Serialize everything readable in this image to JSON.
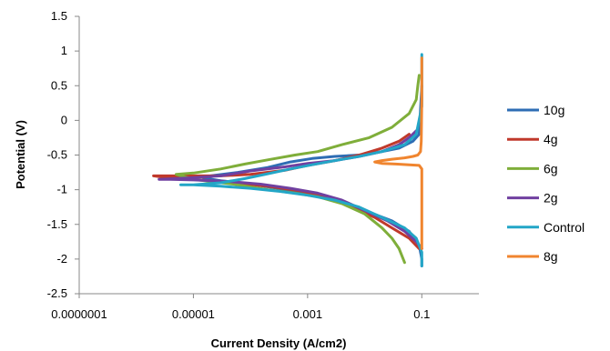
{
  "chart_data": {
    "type": "line",
    "title": "",
    "xlabel": "Current Density (A/cm2)",
    "ylabel": "Potential (V)",
    "x_scale": "log",
    "xlim": [
      1e-07,
      1
    ],
    "ylim": [
      -2.5,
      1.5
    ],
    "x_ticks": [
      {
        "value": 1e-07,
        "label": "0.0000001"
      },
      {
        "value": 1e-05,
        "label": "0.00001"
      },
      {
        "value": 0.001,
        "label": "0.001"
      },
      {
        "value": 0.1,
        "label": "0.1"
      }
    ],
    "y_ticks": [
      {
        "value": 1.5,
        "label": "1.5"
      },
      {
        "value": 1,
        "label": "1"
      },
      {
        "value": 0.5,
        "label": "0.5"
      },
      {
        "value": 0,
        "label": "0"
      },
      {
        "value": -0.5,
        "label": "-0.5"
      },
      {
        "value": -1,
        "label": "-1"
      },
      {
        "value": -1.5,
        "label": "-1.5"
      },
      {
        "value": -2,
        "label": "-2"
      },
      {
        "value": -2.5,
        "label": "-2.5"
      }
    ],
    "grid": false,
    "legend_position": "right",
    "series": [
      {
        "name": "10g",
        "color": "#2e6db4",
        "x": [
          0.1,
          0.09,
          0.07,
          0.04,
          0.02,
          0.008,
          0.003,
          0.0012,
          0.0005,
          0.0002,
          6e-05,
          2e-05,
          1.5e-05,
          3e-05,
          0.0001,
          0.0003,
          0.001,
          0.003,
          0.01,
          0.03,
          0.06,
          0.09,
          0.1,
          0.1
        ],
        "y": [
          0.5,
          -0.2,
          -0.3,
          -0.4,
          -0.45,
          -0.5,
          -0.52,
          -0.55,
          -0.6,
          -0.68,
          -0.75,
          -0.8,
          -0.83,
          -0.87,
          -0.92,
          -0.98,
          -1.05,
          -1.15,
          -1.3,
          -1.45,
          -1.6,
          -1.8,
          -2.0,
          -2.1
        ]
      },
      {
        "name": "4g",
        "color": "#c0392b",
        "x": [
          0.06,
          0.04,
          0.02,
          0.008,
          0.003,
          0.001,
          0.0004,
          0.0001,
          3e-05,
          6e-06,
          2e-06,
          3e-06,
          1e-05,
          5e-05,
          0.0002,
          0.0008,
          0.002,
          0.006,
          0.015,
          0.03,
          0.06,
          0.09
        ],
        "y": [
          -0.2,
          -0.3,
          -0.4,
          -0.5,
          -0.58,
          -0.65,
          -0.72,
          -0.78,
          -0.8,
          -0.8,
          -0.8,
          -0.82,
          -0.85,
          -0.9,
          -0.95,
          -1.02,
          -1.1,
          -1.25,
          -1.4,
          -1.55,
          -1.7,
          -1.85
        ]
      },
      {
        "name": "6g",
        "color": "#7fae3a",
        "x": [
          0.09,
          0.085,
          0.08,
          0.06,
          0.03,
          0.012,
          0.004,
          0.0015,
          0.0006,
          0.0002,
          8e-05,
          3e-05,
          1e-05,
          5e-06,
          1e-05,
          5e-05,
          0.0002,
          0.0006,
          0.0015,
          0.004,
          0.01,
          0.02,
          0.03,
          0.04,
          0.05
        ],
        "y": [
          0.65,
          0.5,
          0.3,
          0.1,
          -0.1,
          -0.25,
          -0.35,
          -0.45,
          -0.5,
          -0.57,
          -0.63,
          -0.7,
          -0.76,
          -0.78,
          -0.85,
          -0.92,
          -1.0,
          -1.05,
          -1.1,
          -1.2,
          -1.35,
          -1.55,
          -1.7,
          -1.85,
          -2.05
        ]
      },
      {
        "name": "2g",
        "color": "#7040a0",
        "x": [
          0.08,
          0.06,
          0.04,
          0.02,
          0.008,
          0.003,
          0.001,
          0.0004,
          0.0001,
          3e-05,
          8e-06,
          2.5e-06,
          4e-06,
          1e-05,
          4e-05,
          0.00015,
          0.0005,
          0.0015,
          0.004,
          0.01,
          0.025,
          0.05,
          0.08,
          0.1
        ],
        "y": [
          -0.15,
          -0.25,
          -0.35,
          -0.45,
          -0.52,
          -0.58,
          -0.62,
          -0.67,
          -0.73,
          -0.8,
          -0.83,
          -0.85,
          -0.85,
          -0.86,
          -0.88,
          -0.92,
          -0.98,
          -1.05,
          -1.15,
          -1.3,
          -1.45,
          -1.6,
          -1.75,
          -1.85
        ]
      },
      {
        "name": "Control",
        "color": "#23a6c7",
        "x": [
          0.1,
          0.1,
          0.08,
          0.05,
          0.02,
          0.008,
          0.003,
          0.0012,
          0.0005,
          0.0002,
          8e-05,
          3e-05,
          1e-05,
          6e-06,
          1e-05,
          3e-05,
          0.0001,
          0.0003,
          0.001,
          0.003,
          0.008,
          0.02,
          0.05,
          0.08,
          0.1,
          0.1
        ],
        "y": [
          0.95,
          0.2,
          -0.2,
          -0.35,
          -0.45,
          -0.52,
          -0.58,
          -0.64,
          -0.7,
          -0.77,
          -0.84,
          -0.9,
          -0.93,
          -0.93,
          -0.93,
          -0.95,
          -0.98,
          -1.02,
          -1.08,
          -1.15,
          -1.25,
          -1.4,
          -1.55,
          -1.7,
          -1.9,
          -2.1
        ]
      },
      {
        "name": "8g",
        "color": "#f0852f",
        "x": [
          0.1,
          0.1,
          0.098,
          0.095,
          0.085,
          0.07,
          0.05,
          0.03,
          0.02,
          0.015,
          0.02,
          0.035,
          0.06,
          0.09,
          0.1,
          0.1,
          0.1
        ],
        "y": [
          0.9,
          0.3,
          -0.3,
          -0.45,
          -0.5,
          -0.52,
          -0.54,
          -0.56,
          -0.58,
          -0.6,
          -0.62,
          -0.63,
          -0.64,
          -0.65,
          -0.7,
          -1.2,
          -1.85
        ]
      }
    ]
  }
}
